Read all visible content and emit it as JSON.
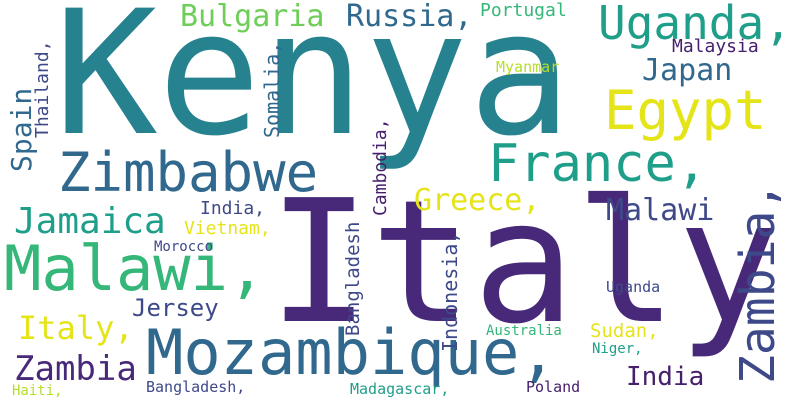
{
  "words": [
    {
      "id": "kenya",
      "text": "Kenya",
      "color": "#26828e"
    },
    {
      "id": "italy-big",
      "text": "Italy",
      "color": "#482878"
    },
    {
      "id": "mozambique",
      "text": "Mozambique,",
      "color": "#31688e"
    },
    {
      "id": "malawi-left",
      "text": "Malawi,",
      "color": "#35b779"
    },
    {
      "id": "zimbabwe",
      "text": "Zimbabwe",
      "color": "#31688e"
    },
    {
      "id": "france",
      "text": "France,",
      "color": "#1f9e89"
    },
    {
      "id": "uganda-top",
      "text": "Uganda,",
      "color": "#1f9e89"
    },
    {
      "id": "egypt",
      "text": "Egypt",
      "color": "#e5e419"
    },
    {
      "id": "zambia-vertical",
      "text": "Zambia,",
      "color": "#3e4989"
    },
    {
      "id": "bulgaria",
      "text": "Bulgaria",
      "color": "#6ece58"
    },
    {
      "id": "russia",
      "text": "Russia,",
      "color": "#31688e"
    },
    {
      "id": "japan",
      "text": "Japan",
      "color": "#31688e"
    },
    {
      "id": "jamaica",
      "text": "Jamaica",
      "color": "#1f9e89"
    },
    {
      "id": "greece",
      "text": "Greece,",
      "color": "#e5e419"
    },
    {
      "id": "malawi-right",
      "text": "Malawi",
      "color": "#3e4989"
    },
    {
      "id": "italy-small",
      "text": "Italy,",
      "color": "#e5e419"
    },
    {
      "id": "zambia-left",
      "text": "Zambia",
      "color": "#482878"
    },
    {
      "id": "india-bottom",
      "text": "India",
      "color": "#46206c"
    },
    {
      "id": "jersey",
      "text": "Jersey",
      "color": "#3e4989"
    },
    {
      "id": "portugal",
      "text": "Portugal",
      "color": "#35b779"
    },
    {
      "id": "malaysia",
      "text": "Malaysia",
      "color": "#46206c"
    },
    {
      "id": "myanmar",
      "text": "Myanmar",
      "color": "#b5de2b"
    },
    {
      "id": "spain",
      "text": "Spain",
      "color": "#31688e"
    },
    {
      "id": "thailand",
      "text": "Thailand,",
      "color": "#3e4989"
    },
    {
      "id": "somalia",
      "text": "Somalia,",
      "color": "#31688e"
    },
    {
      "id": "cambodia",
      "text": "Cambodia,",
      "color": "#46206c"
    },
    {
      "id": "bangladesh-vertical",
      "text": "Bangladesh",
      "color": "#3e4989"
    },
    {
      "id": "indonesia",
      "text": "Indonesia,",
      "color": "#3e4989"
    },
    {
      "id": "india-mid",
      "text": "India,",
      "color": "#3e4989"
    },
    {
      "id": "vietnam",
      "text": "Vietnam,",
      "color": "#e5e419"
    },
    {
      "id": "morocco",
      "text": "Morocco",
      "color": "#3e4989"
    },
    {
      "id": "uganda-small",
      "text": "Uganda",
      "color": "#3e4989"
    },
    {
      "id": "australia",
      "text": "Australia",
      "color": "#35b779"
    },
    {
      "id": "sudan",
      "text": "Sudan,",
      "color": "#e5e419"
    },
    {
      "id": "niger",
      "text": "Niger,",
      "color": "#1f9e89"
    },
    {
      "id": "haiti",
      "text": "Haiti,",
      "color": "#b5de2b"
    },
    {
      "id": "bangladesh-bottom",
      "text": "Bangladesh,",
      "color": "#3e4989"
    },
    {
      "id": "madagascar",
      "text": "Madagascar,",
      "color": "#1f9e89"
    },
    {
      "id": "poland",
      "text": "Poland",
      "color": "#46206c"
    }
  ]
}
